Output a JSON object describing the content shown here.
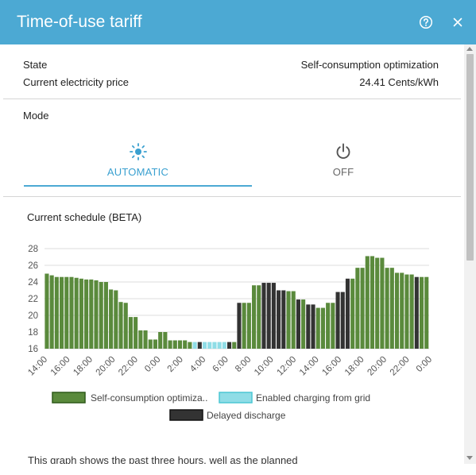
{
  "dialog": {
    "title": "Time-of-use tariff",
    "help_icon": "help-circle-icon",
    "close_icon": "close-icon"
  },
  "status": {
    "state_label": "State",
    "state_value": "Self-consumption optimization",
    "price_label": "Current electricity price",
    "price_value": "24.41 Cents/kWh"
  },
  "mode": {
    "label": "Mode",
    "tabs": [
      {
        "label": "AUTOMATIC",
        "icon": "sun-icon",
        "selected": true
      },
      {
        "label": "OFF",
        "icon": "power-icon",
        "selected": false
      }
    ]
  },
  "schedule": {
    "title": "Current schedule (BETA)",
    "footnote": "This graph shows the past three hours, well as the planned"
  },
  "colors": {
    "accent": "#4ca9d3",
    "self_consumption": "#5a8a3c",
    "charging": "#8fdde6",
    "delayed": "#333333"
  },
  "chart_data": {
    "type": "bar",
    "y_ticks": [
      "28",
      "26",
      "24",
      "22",
      "20",
      "18",
      "16"
    ],
    "ylim": [
      16,
      28
    ],
    "x_ticks": [
      "14:00",
      "16:00",
      "18:00",
      "20:00",
      "22:00",
      "0:00",
      "2:00",
      "4:00",
      "6:00",
      "8:00",
      "10:00",
      "12:00",
      "14:00",
      "16:00",
      "18:00",
      "20:00",
      "22:00",
      "0:00"
    ],
    "interval_minutes": 30,
    "legend": [
      {
        "key": "self",
        "label": "Self-consumption optimiza..",
        "color": "#5a8a3c"
      },
      {
        "key": "charge",
        "label": "Enabled charging from grid",
        "color": "#8fdde6"
      },
      {
        "key": "delay",
        "label": "Delayed discharge",
        "color": "#333333"
      }
    ],
    "series": [
      {
        "key": "self",
        "values": [
          25.0,
          24.6,
          24.6,
          24.6,
          24.6,
          24.5,
          24.3,
          24.2,
          24.0,
          23.1,
          21.6,
          19.8,
          18.2,
          17.1,
          18.0,
          17.0,
          17.0,
          16.8
        ]
      },
      {
        "key": "self",
        "values": [
          24.8,
          24.6,
          24.6,
          24.6,
          24.5,
          24.4,
          24.3,
          24.2,
          24.0,
          23.1,
          21.6,
          19.8,
          18.2,
          17.1,
          18.0,
          17.0,
          17.0,
          16.8
        ]
      },
      {
        "key": "charge",
        "values": [
          16.8,
          16.8,
          16.8,
          16.8,
          16.8,
          16.8
        ]
      },
      {
        "key": "self",
        "values": [
          21.5,
          23.6,
          23.9,
          23.0,
          22.9,
          21.9,
          21.3,
          20.9,
          21.5,
          22.8,
          24.4,
          25.7,
          27.1,
          26.9,
          25.7,
          25.1,
          24.9,
          24.6
        ]
      }
    ],
    "bars": [
      {
        "v": 25.0,
        "s": "self"
      },
      {
        "v": 24.8,
        "s": "self"
      },
      {
        "v": 24.6,
        "s": "self"
      },
      {
        "v": 24.6,
        "s": "self"
      },
      {
        "v": 24.6,
        "s": "self"
      },
      {
        "v": 24.6,
        "s": "self"
      },
      {
        "v": 24.5,
        "s": "self"
      },
      {
        "v": 24.4,
        "s": "self"
      },
      {
        "v": 24.3,
        "s": "self"
      },
      {
        "v": 24.3,
        "s": "self"
      },
      {
        "v": 24.2,
        "s": "self"
      },
      {
        "v": 24.0,
        "s": "self"
      },
      {
        "v": 24.0,
        "s": "self"
      },
      {
        "v": 23.1,
        "s": "self"
      },
      {
        "v": 23.0,
        "s": "self"
      },
      {
        "v": 21.6,
        "s": "self"
      },
      {
        "v": 21.5,
        "s": "self"
      },
      {
        "v": 19.8,
        "s": "self"
      },
      {
        "v": 19.8,
        "s": "self"
      },
      {
        "v": 18.2,
        "s": "self"
      },
      {
        "v": 18.2,
        "s": "self"
      },
      {
        "v": 17.1,
        "s": "self"
      },
      {
        "v": 17.1,
        "s": "self"
      },
      {
        "v": 18.0,
        "s": "self"
      },
      {
        "v": 18.0,
        "s": "self"
      },
      {
        "v": 17.0,
        "s": "self"
      },
      {
        "v": 17.0,
        "s": "self"
      },
      {
        "v": 17.0,
        "s": "self"
      },
      {
        "v": 17.0,
        "s": "self"
      },
      {
        "v": 16.8,
        "s": "self"
      },
      {
        "v": 16.8,
        "s": "charge"
      },
      {
        "v": 16.8,
        "s": "delay"
      },
      {
        "v": 16.8,
        "s": "charge"
      },
      {
        "v": 16.8,
        "s": "charge"
      },
      {
        "v": 16.8,
        "s": "charge"
      },
      {
        "v": 16.8,
        "s": "charge"
      },
      {
        "v": 16.8,
        "s": "charge"
      },
      {
        "v": 16.8,
        "s": "delay"
      },
      {
        "v": 16.8,
        "s": "self"
      },
      {
        "v": 21.5,
        "s": "delay"
      },
      {
        "v": 21.5,
        "s": "self"
      },
      {
        "v": 21.5,
        "s": "self"
      },
      {
        "v": 23.6,
        "s": "self"
      },
      {
        "v": 23.6,
        "s": "self"
      },
      {
        "v": 23.9,
        "s": "delay"
      },
      {
        "v": 23.9,
        "s": "delay"
      },
      {
        "v": 23.9,
        "s": "delay"
      },
      {
        "v": 23.0,
        "s": "delay"
      },
      {
        "v": 23.0,
        "s": "delay"
      },
      {
        "v": 22.9,
        "s": "self"
      },
      {
        "v": 22.9,
        "s": "self"
      },
      {
        "v": 21.9,
        "s": "delay"
      },
      {
        "v": 21.9,
        "s": "self"
      },
      {
        "v": 21.3,
        "s": "delay"
      },
      {
        "v": 21.3,
        "s": "delay"
      },
      {
        "v": 20.9,
        "s": "self"
      },
      {
        "v": 20.9,
        "s": "self"
      },
      {
        "v": 21.5,
        "s": "self"
      },
      {
        "v": 21.5,
        "s": "self"
      },
      {
        "v": 22.8,
        "s": "delay"
      },
      {
        "v": 22.8,
        "s": "delay"
      },
      {
        "v": 24.4,
        "s": "delay"
      },
      {
        "v": 24.4,
        "s": "self"
      },
      {
        "v": 25.7,
        "s": "self"
      },
      {
        "v": 25.7,
        "s": "self"
      },
      {
        "v": 27.1,
        "s": "self"
      },
      {
        "v": 27.1,
        "s": "self"
      },
      {
        "v": 26.9,
        "s": "self"
      },
      {
        "v": 26.9,
        "s": "self"
      },
      {
        "v": 25.7,
        "s": "self"
      },
      {
        "v": 25.7,
        "s": "self"
      },
      {
        "v": 25.1,
        "s": "self"
      },
      {
        "v": 25.1,
        "s": "self"
      },
      {
        "v": 24.9,
        "s": "self"
      },
      {
        "v": 24.9,
        "s": "self"
      },
      {
        "v": 24.6,
        "s": "delay"
      },
      {
        "v": 24.6,
        "s": "self"
      },
      {
        "v": 24.6,
        "s": "self"
      }
    ]
  }
}
